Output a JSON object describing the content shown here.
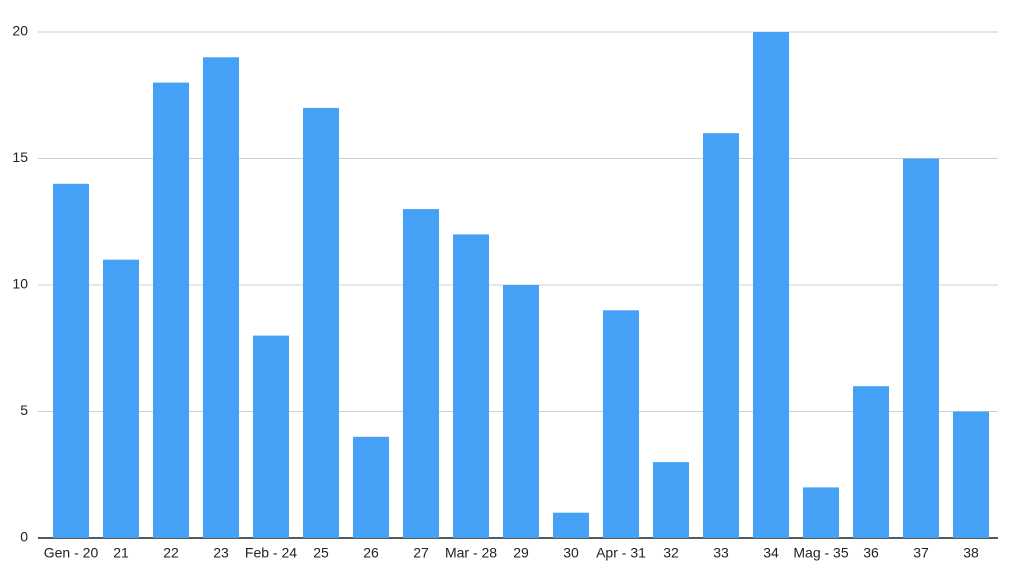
{
  "chart_data": {
    "type": "bar",
    "categories": [
      "Gen - 20",
      "21",
      "22",
      "23",
      "Feb - 24",
      "25",
      "26",
      "27",
      "Mar - 28",
      "29",
      "30",
      "Apr - 31",
      "32",
      "33",
      "34",
      "Mag - 35",
      "36",
      "37",
      "38"
    ],
    "values": [
      14,
      11,
      18,
      19,
      8,
      17,
      4,
      13,
      12,
      10,
      1,
      9,
      3,
      16,
      20,
      2,
      6,
      15,
      5
    ],
    "color": "#45a1f6",
    "ylim": [
      0,
      20
    ],
    "yticks": [
      0,
      5,
      10,
      15,
      20
    ],
    "grid": true
  }
}
